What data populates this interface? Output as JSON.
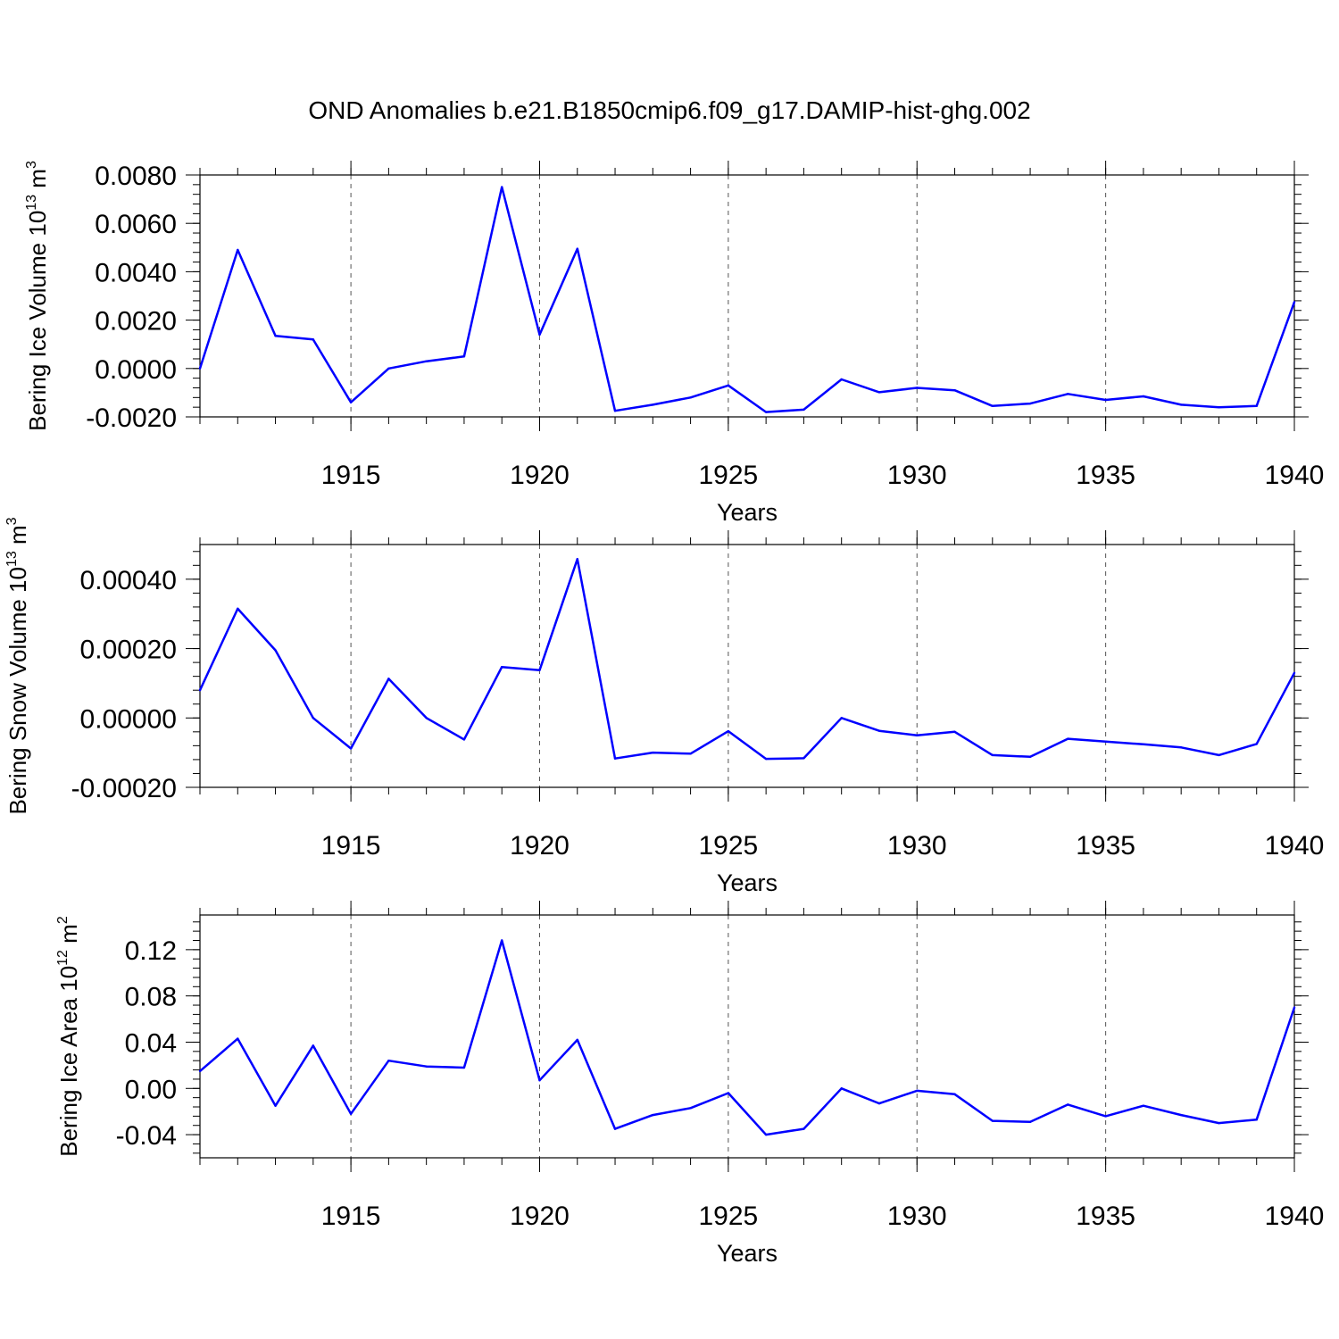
{
  "figure_title": "OND Anomalies b.e21.B1850cmip6.f09_g17.DAMIP-hist-ghg.002",
  "series_color": "#0000ff",
  "chart_data": [
    {
      "type": "line",
      "xlabel": "Years",
      "ylabel": {
        "text": "Bering Ice Volume 10",
        "exp": "13",
        "unit": " m",
        "unit_exp": "3"
      },
      "xlim": [
        1911,
        1940
      ],
      "ylim": [
        -0.002,
        0.008
      ],
      "xticks": [
        1915,
        1920,
        1925,
        1930,
        1935,
        1940
      ],
      "x_tick_labels": [
        "1915",
        "1920",
        "1925",
        "1930",
        "1935",
        "1940"
      ],
      "yticks": [
        -0.002,
        0.0,
        0.002,
        0.004,
        0.006,
        0.008
      ],
      "y_tick_labels": [
        "-0.0020",
        "0.0000",
        "0.0020",
        "0.0040",
        "0.0060",
        "0.0080"
      ],
      "grid_x": true,
      "x": [
        1911,
        1912,
        1913,
        1914,
        1915,
        1916,
        1917,
        1918,
        1919,
        1920,
        1921,
        1922,
        1923,
        1924,
        1925,
        1926,
        1927,
        1928,
        1929,
        1930,
        1931,
        1932,
        1933,
        1934,
        1935,
        1936,
        1937,
        1938,
        1939,
        1940
      ],
      "values": [
        0.0,
        0.0049,
        0.00135,
        0.0012,
        -0.0014,
        0.0,
        0.0003,
        0.0005,
        0.0075,
        0.0014,
        0.00495,
        -0.00175,
        -0.0015,
        -0.0012,
        -0.0007,
        -0.0018,
        -0.0017,
        -0.00045,
        -0.00098,
        -0.0008,
        -0.0009,
        -0.00155,
        -0.00145,
        -0.00105,
        -0.0013,
        -0.00115,
        -0.0015,
        -0.0016,
        -0.00155,
        0.00275
      ]
    },
    {
      "type": "line",
      "xlabel": "Years",
      "ylabel": {
        "text": "Bering Snow Volume 10",
        "exp": "13",
        "unit": " m",
        "unit_exp": "3"
      },
      "xlim": [
        1911,
        1940
      ],
      "ylim": [
        -0.0002,
        0.0005
      ],
      "xticks": [
        1915,
        1920,
        1925,
        1930,
        1935,
        1940
      ],
      "x_tick_labels": [
        "1915",
        "1920",
        "1925",
        "1930",
        "1935",
        "1940"
      ],
      "yticks": [
        -0.0002,
        0.0,
        0.0002,
        0.0004
      ],
      "y_tick_labels": [
        "-0.00020",
        "0.00000",
        "0.00020",
        "0.00040"
      ],
      "grid_x": true,
      "x": [
        1911,
        1912,
        1913,
        1914,
        1915,
        1916,
        1917,
        1918,
        1919,
        1920,
        1921,
        1922,
        1923,
        1924,
        1925,
        1926,
        1927,
        1928,
        1929,
        1930,
        1931,
        1932,
        1933,
        1934,
        1935,
        1936,
        1937,
        1938,
        1939,
        1940
      ],
      "values": [
        8e-05,
        0.000315,
        0.000195,
        0.0,
        -8.8e-05,
        0.000113,
        0.0,
        -6.2e-05,
        0.000147,
        0.000138,
        0.000458,
        -0.000117,
        -0.0001,
        -0.000103,
        -3.8e-05,
        -0.000118,
        -0.000116,
        0.0,
        -3.7e-05,
        -5e-05,
        -4e-05,
        -0.000107,
        -0.000112,
        -6e-05,
        -6.8e-05,
        -7.6e-05,
        -8.5e-05,
        -0.000107,
        -7.5e-05,
        0.00013
      ]
    },
    {
      "type": "line",
      "xlabel": "Years",
      "ylabel": {
        "text": "Bering Ice Area 10",
        "exp": "12",
        "unit": " m",
        "unit_exp": "2"
      },
      "xlim": [
        1911,
        1940
      ],
      "ylim": [
        -0.06,
        0.15
      ],
      "xticks": [
        1915,
        1920,
        1925,
        1930,
        1935,
        1940
      ],
      "x_tick_labels": [
        "1915",
        "1920",
        "1925",
        "1930",
        "1935",
        "1940"
      ],
      "yticks": [
        -0.04,
        0.0,
        0.04,
        0.08,
        0.12
      ],
      "y_tick_labels": [
        "-0.04",
        "0.00",
        "0.04",
        "0.08",
        "0.12"
      ],
      "grid_x": true,
      "x": [
        1911,
        1912,
        1913,
        1914,
        1915,
        1916,
        1917,
        1918,
        1919,
        1920,
        1921,
        1922,
        1923,
        1924,
        1925,
        1926,
        1927,
        1928,
        1929,
        1930,
        1931,
        1932,
        1933,
        1934,
        1935,
        1936,
        1937,
        1938,
        1939,
        1940
      ],
      "values": [
        0.015,
        0.043,
        -0.015,
        0.037,
        -0.022,
        0.024,
        0.019,
        0.018,
        0.128,
        0.007,
        0.042,
        -0.035,
        -0.023,
        -0.017,
        -0.004,
        -0.04,
        -0.035,
        0.0,
        -0.013,
        -0.002,
        -0.005,
        -0.028,
        -0.029,
        -0.014,
        -0.024,
        -0.015,
        -0.023,
        -0.03,
        -0.027,
        0.07
      ]
    }
  ]
}
